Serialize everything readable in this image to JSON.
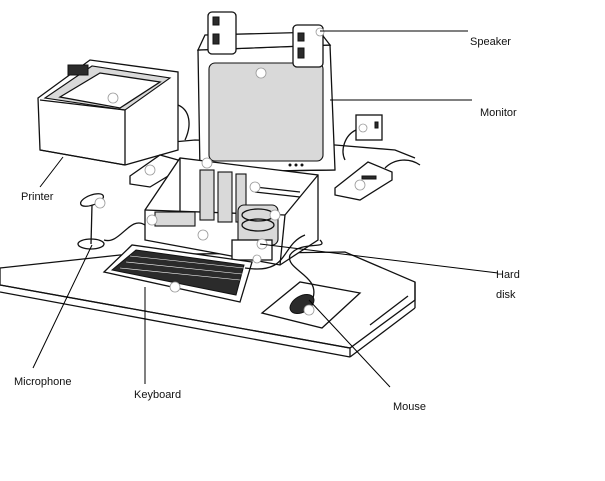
{
  "labels": {
    "speaker": "Speaker",
    "monitor": "Monitor",
    "printer": "Printer",
    "hard_disk_line1": "Hard",
    "hard_disk_line2": "disk",
    "microphone": "Microphone",
    "keyboard": "Keyboard",
    "mouse": "Mouse"
  }
}
